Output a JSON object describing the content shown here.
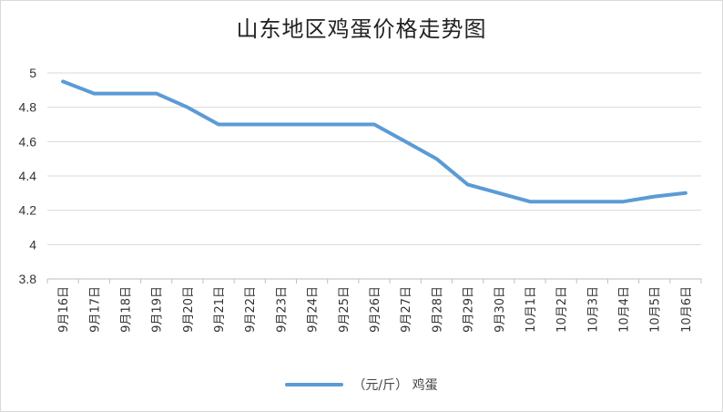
{
  "chart_data": {
    "type": "line",
    "title": "山东地区鸡蛋价格走势图",
    "categories": [
      "9月16日",
      "9月17日",
      "9月18日",
      "9月19日",
      "9月20日",
      "9月21日",
      "9月22日",
      "9月23日",
      "9月24日",
      "9月25日",
      "9月26日",
      "9月27日",
      "9月28日",
      "9月29日",
      "9月30日",
      "10月1日",
      "10月2日",
      "10月3日",
      "10月4日",
      "10月5日",
      "10月6日"
    ],
    "series": [
      {
        "name": "（元/斤）  鸡蛋",
        "color": "#5b9bd5",
        "values": [
          4.95,
          4.88,
          4.88,
          4.88,
          4.8,
          4.7,
          4.7,
          4.7,
          4.7,
          4.7,
          4.7,
          4.6,
          4.5,
          4.35,
          4.3,
          4.25,
          4.25,
          4.25,
          4.25,
          4.28,
          4.3
        ]
      }
    ],
    "yticks": [
      "3.8",
      "4",
      "4.2",
      "4.4",
      "4.6",
      "4.8",
      "5"
    ],
    "ylim": [
      3.8,
      5.0
    ],
    "grid": true,
    "legend_position": "bottom"
  }
}
